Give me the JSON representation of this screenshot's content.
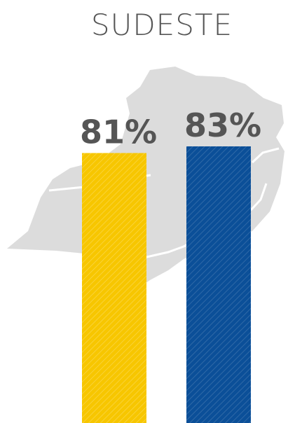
{
  "chart_data": {
    "type": "bar",
    "title": "SUDESTE",
    "categories": [
      null,
      null
    ],
    "values": [
      81,
      83
    ],
    "value_labels": [
      "81%",
      "83%"
    ],
    "colors": [
      "#f7c600",
      "#0b4f98"
    ]
  }
}
